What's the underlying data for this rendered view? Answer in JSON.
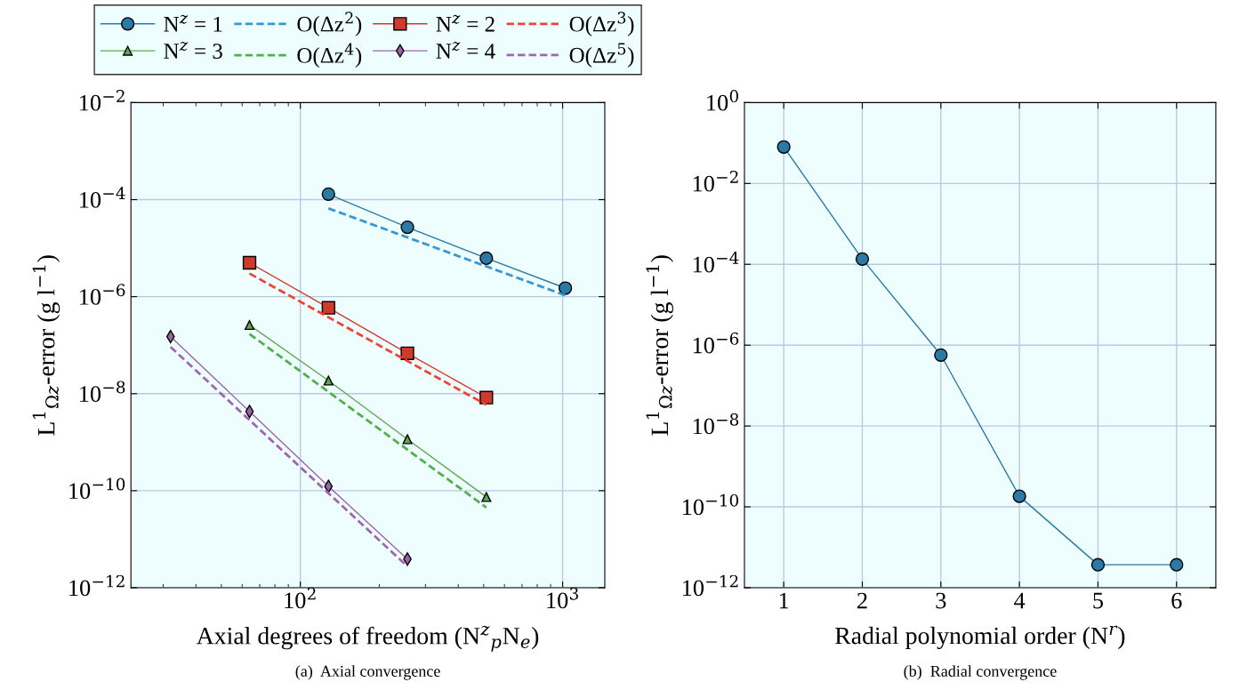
{
  "chart_data": [
    {
      "type": "line",
      "title": "(a)  Axial convergence",
      "xlabel": "Axial degrees of freedom (N$^{z}$$_{p}$N$_{e}$)",
      "ylabel": "L$^{1}$$_{Ωz}$-error (g l$^{−1}$)",
      "log": "xy",
      "xlim": [
        22.6,
        1448
      ],
      "xticks": [
        {
          "value": 100,
          "label": "10$^{2}$"
        },
        {
          "value": 1000,
          "label": "10$^{3}$"
        }
      ],
      "ylim": [
        1e-12,
        0.01
      ],
      "yticks": [
        {
          "value": 1e-12,
          "label": "10$^{−12}$"
        },
        {
          "value": 1e-10,
          "label": "10$^{−10}$"
        },
        {
          "value": 1e-08,
          "label": "10$^{−8}$"
        },
        {
          "value": 1e-06,
          "label": "10$^{−6}$"
        },
        {
          "value": 0.0001,
          "label": "10$^{−4}$"
        },
        {
          "value": 0.01,
          "label": "10$^{−2}$"
        }
      ],
      "grid": true,
      "legend": "top",
      "series": [
        {
          "name": "N$^{z}$ = 1",
          "color": "#2b7aa6",
          "marker": "circle",
          "line_style": "solid",
          "x": [
            128,
            256,
            512,
            1024
          ],
          "values": [
            0.00013,
            2.7e-05,
            6.2e-06,
            1.5e-06
          ]
        },
        {
          "name": "O(Δz$^{2}$)",
          "color": "#3399d6",
          "marker": "none",
          "line_style": "dashed",
          "x": [
            128,
            1024
          ],
          "values": [
            6.6e-05,
            1.06e-06
          ]
        },
        {
          "name": "N$^{z}$ = 2",
          "color": "#d03a2c",
          "marker": "square",
          "line_style": "solid",
          "x": [
            64,
            128,
            256,
            512
          ],
          "values": [
            5e-06,
            5.9e-07,
            6.8e-08,
            8.3e-09
          ]
        },
        {
          "name": "O(Δz$^{3}$)",
          "color": "#ee4433",
          "marker": "none",
          "line_style": "dashed",
          "x": [
            64,
            512
          ],
          "values": [
            3e-06,
            5.9e-09
          ]
        },
        {
          "name": "N$^{z}$ = 3",
          "color": "#5fa84a",
          "marker": "triangle",
          "line_style": "solid",
          "x": [
            64,
            128,
            256,
            512
          ],
          "values": [
            2.6e-07,
            1.86e-08,
            1.15e-09,
            7.4e-11
          ]
        },
        {
          "name": "O(Δz$^{4}$)",
          "color": "#4fb04a",
          "marker": "none",
          "line_style": "dashed",
          "x": [
            64,
            512
          ],
          "values": [
            1.7e-07,
            4.5e-11
          ]
        },
        {
          "name": "N$^{z}$ = 4",
          "color": "#9a65a8",
          "marker": "diamond",
          "line_style": "solid",
          "x": [
            32,
            64,
            128,
            256
          ],
          "values": [
            1.5e-07,
            4.3e-09,
            1.23e-10,
            3.9e-12
          ]
        },
        {
          "name": "O(Δz$^{5}$)",
          "color": "#a066b0",
          "marker": "none",
          "line_style": "dashed",
          "x": [
            32,
            256
          ],
          "values": [
            9.2e-08,
            2.75e-12
          ]
        }
      ]
    },
    {
      "type": "line",
      "title": "(b)  Radial convergence",
      "xlabel": "Radial polynomial order (N$^{r}$)",
      "ylabel": "L$^{1}$$_{Ωz}$-error (g l$^{−1}$)",
      "log": "y",
      "xlim": [
        0.5,
        6.5
      ],
      "xticks": [
        1,
        2,
        3,
        4,
        5,
        6
      ],
      "ylim": [
        1e-12,
        1
      ],
      "yticks": [
        {
          "value": 1e-12,
          "label": "10$^{−12}$"
        },
        {
          "value": 1e-10,
          "label": "10$^{−10}$"
        },
        {
          "value": 1e-08,
          "label": "10$^{−8}$"
        },
        {
          "value": 1e-06,
          "label": "10$^{−6}$"
        },
        {
          "value": 0.0001,
          "label": "10$^{−4}$"
        },
        {
          "value": 0.01,
          "label": "10$^{−2}$"
        },
        {
          "value": 1,
          "label": "10$^{0}$"
        }
      ],
      "grid": true,
      "series": [
        {
          "color": "#2b7aa6",
          "marker": "circle",
          "line_style": "solid",
          "x": [
            1,
            2,
            3,
            4,
            5,
            6
          ],
          "values": [
            0.08,
            0.000135,
            5.7e-07,
            1.83e-10,
            3.7e-12,
            3.7e-12
          ]
        }
      ]
    }
  ]
}
